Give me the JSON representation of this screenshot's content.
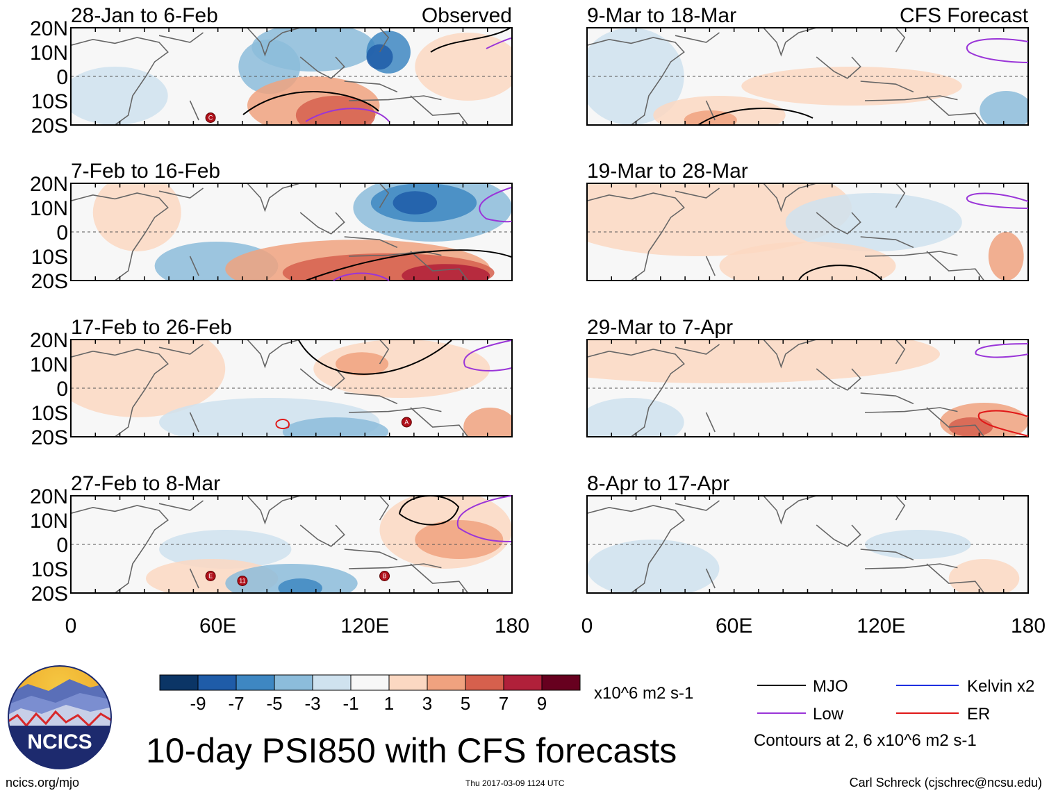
{
  "chart_data": {
    "type": "heatmap",
    "title": "10-day PSI850 with CFS forecasts",
    "variable": "PSI850 10-day mean anomaly",
    "units": "x10^6 m2 s-1",
    "x_axis": {
      "range": [
        0,
        180
      ],
      "ticks": [
        "0",
        "60E",
        "120E",
        "180"
      ]
    },
    "y_axis": {
      "range": [
        -20,
        20
      ],
      "ticks": [
        "20N",
        "10N",
        "0",
        "10S",
        "20S"
      ]
    },
    "colorbar": {
      "labels": [
        "-9",
        "-7",
        "-5",
        "-3",
        "-1",
        "1",
        "3",
        "5",
        "7",
        "9"
      ],
      "colors": [
        "#0b3566",
        "#1f5ca8",
        "#3e87c2",
        "#8cbcdb",
        "#cfe2ef",
        "#f7f7f7",
        "#fbd8c2",
        "#f0a27f",
        "#d6604d",
        "#b0203a",
        "#67001f"
      ]
    },
    "columns": [
      {
        "header": "Observed",
        "panels": [
          "28-Jan to 6-Feb",
          "7-Feb to 16-Feb",
          "17-Feb to 26-Feb",
          "27-Feb to 8-Mar"
        ]
      },
      {
        "header": "CFS Forecast",
        "panels": [
          "9-Mar to 18-Mar",
          "19-Mar to 28-Mar",
          "29-Mar to 7-Apr",
          "8-Apr to 17-Apr"
        ]
      }
    ],
    "storm_markers": [
      {
        "panel": "28-Jan to 6-Feb",
        "label": "C",
        "lon": 57,
        "lat": -17
      },
      {
        "panel": "17-Feb to 26-Feb",
        "label": "A",
        "lon": 137,
        "lat": -14
      },
      {
        "panel": "27-Feb to 8-Mar",
        "label": "E",
        "lon": 57,
        "lat": -13
      },
      {
        "panel": "27-Feb to 8-Mar",
        "label": "11",
        "lon": 70,
        "lat": -15
      },
      {
        "panel": "27-Feb to 8-Mar",
        "label": "B",
        "lon": 128,
        "lat": -13
      }
    ],
    "legend": {
      "items": [
        {
          "label": "MJO",
          "color": "#000000"
        },
        {
          "label": "Kelvin x2",
          "color": "#1f2fe0"
        },
        {
          "label": "Low",
          "color": "#9a35d8"
        },
        {
          "label": "ER",
          "color": "#e01818"
        }
      ],
      "note": "Contours at 2, 6 x10^6 m2 s-1"
    }
  },
  "footer": {
    "logo_text": "NCICS",
    "url": "ncics.org/mjo",
    "timestamp": "Thu 2017-03-09 1124 UTC",
    "credit": "Carl Schreck (cjschrec@ncsu.edu)"
  }
}
